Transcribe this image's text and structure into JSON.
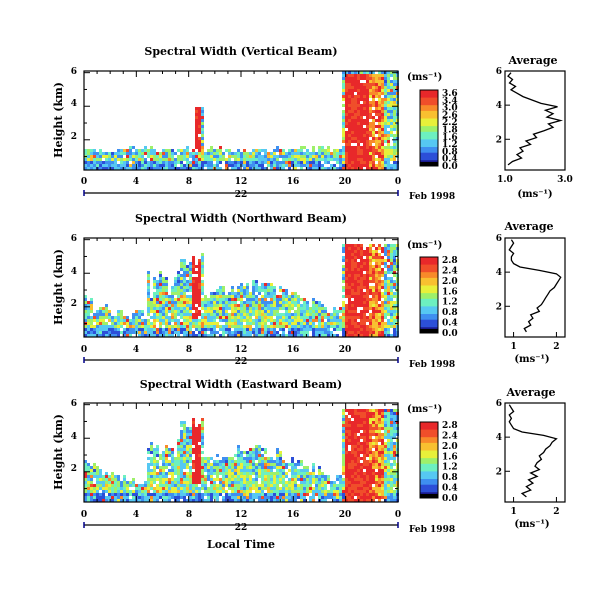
{
  "chart_data": {
    "type": "heatmap",
    "colormap_stops": [
      "#1a1a8f",
      "#2c4fd8",
      "#3f8ff0",
      "#56c8f2",
      "#6df0c0",
      "#9ef06a",
      "#e8f03a",
      "#f8c030",
      "#f88a2a",
      "#f04e2a",
      "#e8282a"
    ],
    "panels": [
      {
        "title": "Spectral Width (Vertical Beam)",
        "ylabel": "Height (km)",
        "yticks": [
          "6",
          "4",
          "2"
        ],
        "xticks": [
          "0",
          "4",
          "8",
          "12",
          "16",
          "20",
          "0"
        ],
        "date_label": "22",
        "month_label": "Feb 1998",
        "colorbar_unit": "(ms⁻¹)",
        "colorbar_ticks": [
          "3.6",
          "3.4",
          "3.0",
          "2.6",
          "2.2",
          "1.8",
          "1.6",
          "1.2",
          "0.8",
          "0.4",
          "0.0"
        ],
        "profile": {
          "title": "Average",
          "xlabel": "(ms⁻¹)",
          "xticks": [
            "1.0",
            "3.0"
          ],
          "yticks": [
            "6",
            "4",
            "2"
          ],
          "xlim": [
            1.0,
            3.0
          ],
          "ylim": [
            0.2,
            6.0
          ],
          "height_km": [
            0.5,
            0.7,
            0.9,
            1.1,
            1.3,
            1.5,
            1.7,
            1.9,
            2.1,
            2.3,
            2.5,
            2.7,
            2.9,
            3.1,
            3.3,
            3.5,
            3.7,
            3.9,
            4.1,
            4.3,
            4.5,
            4.7,
            4.9,
            5.1,
            5.3,
            5.5,
            5.7,
            5.9
          ],
          "width": [
            1.1,
            1.25,
            1.55,
            1.4,
            1.6,
            1.5,
            1.85,
            1.7,
            2.05,
            1.95,
            2.3,
            2.6,
            2.45,
            2.85,
            2.4,
            2.6,
            2.35,
            2.75,
            2.2,
            1.9,
            1.6,
            1.4,
            1.2,
            1.35,
            1.15,
            1.25,
            1.1,
            1.2
          ]
        }
      },
      {
        "title": "Spectral Width (Northward Beam)",
        "ylabel": "Height (km)",
        "yticks": [
          "6",
          "4",
          "2"
        ],
        "xticks": [
          "0",
          "4",
          "8",
          "12",
          "16",
          "20",
          "0"
        ],
        "date_label": "22",
        "month_label": "Feb 1998",
        "colorbar_unit": "(ms⁻¹)",
        "colorbar_ticks": [
          "2.8",
          "2.4",
          "2.0",
          "1.6",
          "1.2",
          "0.8",
          "0.4",
          "0.0"
        ],
        "profile": {
          "title": "Average",
          "xlabel": "(ms⁻¹)",
          "xticks": [
            "1",
            "2"
          ],
          "yticks": [
            "6",
            "4",
            "2"
          ],
          "xlim": [
            0.8,
            2.2
          ],
          "ylim": [
            0.2,
            6.0
          ],
          "height_km": [
            0.5,
            0.7,
            0.9,
            1.1,
            1.3,
            1.5,
            1.7,
            1.9,
            2.1,
            2.3,
            2.5,
            2.7,
            2.9,
            3.1,
            3.3,
            3.5,
            3.7,
            3.9,
            4.1,
            4.3,
            4.5,
            4.7,
            4.9,
            5.1,
            5.3,
            5.5,
            5.7,
            5.9
          ],
          "width": [
            1.3,
            1.25,
            1.4,
            1.35,
            1.45,
            1.4,
            1.6,
            1.55,
            1.65,
            1.7,
            1.75,
            1.8,
            1.85,
            1.95,
            2.0,
            2.05,
            2.1,
            2.0,
            1.6,
            1.15,
            1.0,
            0.95,
            0.95,
            1.0,
            0.9,
            0.95,
            1.0,
            0.95
          ]
        }
      },
      {
        "title": "Spectral Width (Eastward Beam)",
        "ylabel": "Height (km)",
        "yticks": [
          "6",
          "4",
          "2"
        ],
        "xticks": [
          "0",
          "4",
          "8",
          "12",
          "16",
          "20",
          "0"
        ],
        "date_label": "22",
        "month_label": "Feb 1998",
        "colorbar_unit": "(ms⁻¹)",
        "colorbar_ticks": [
          "2.8",
          "2.4",
          "2.0",
          "1.6",
          "1.2",
          "0.8",
          "0.4",
          "0.0"
        ],
        "profile": {
          "title": "Average",
          "xlabel": "(ms⁻¹)",
          "xticks": [
            "1",
            "2"
          ],
          "yticks": [
            "6",
            "4",
            "2"
          ],
          "xlim": [
            0.8,
            2.2
          ],
          "ylim": [
            0.2,
            6.0
          ],
          "height_km": [
            0.5,
            0.7,
            0.9,
            1.1,
            1.3,
            1.5,
            1.7,
            1.9,
            2.1,
            2.3,
            2.5,
            2.7,
            2.9,
            3.1,
            3.3,
            3.5,
            3.7,
            3.9,
            4.1,
            4.3,
            4.5,
            4.7,
            4.9,
            5.1,
            5.3,
            5.5,
            5.7,
            5.9
          ],
          "width": [
            1.3,
            1.2,
            1.4,
            1.3,
            1.45,
            1.35,
            1.55,
            1.4,
            1.6,
            1.5,
            1.55,
            1.65,
            1.6,
            1.7,
            1.75,
            1.85,
            1.9,
            2.0,
            1.7,
            1.2,
            1.0,
            0.95,
            0.9,
            0.95,
            0.9,
            1.0,
            0.95,
            0.9
          ]
        }
      }
    ],
    "xlabel": "Local Time"
  }
}
